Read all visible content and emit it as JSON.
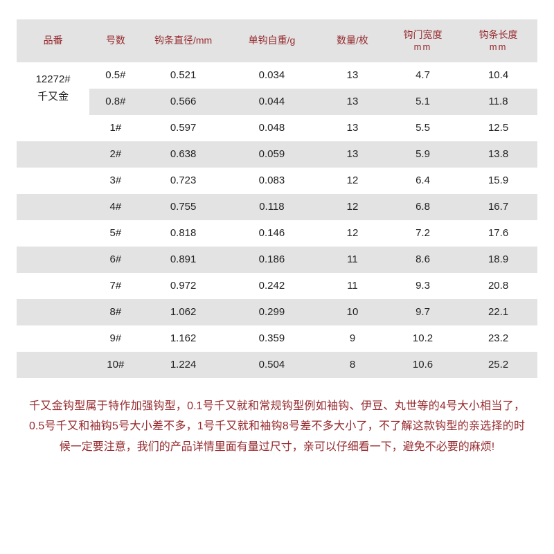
{
  "table": {
    "columns": [
      {
        "key": "pin",
        "label": "品番",
        "unit": ""
      },
      {
        "key": "size",
        "label": "号数",
        "unit": ""
      },
      {
        "key": "dia",
        "label": "钩条直径/mm",
        "unit": ""
      },
      {
        "key": "wt",
        "label": "单钩自重/g",
        "unit": ""
      },
      {
        "key": "qty",
        "label": "数量/枚",
        "unit": ""
      },
      {
        "key": "gate",
        "label": "钩门宽度",
        "unit": "mm"
      },
      {
        "key": "len",
        "label": "钩条长度",
        "unit": "mm"
      }
    ],
    "product_code": "12272#",
    "product_name": "千又金",
    "rows": [
      {
        "size": "0.5#",
        "dia": "0.521",
        "wt": "0.034",
        "qty": "13",
        "gate": "4.7",
        "len": "10.4"
      },
      {
        "size": "0.8#",
        "dia": "0.566",
        "wt": "0.044",
        "qty": "13",
        "gate": "5.1",
        "len": "11.8"
      },
      {
        "size": "1#",
        "dia": "0.597",
        "wt": "0.048",
        "qty": "13",
        "gate": "5.5",
        "len": "12.5"
      },
      {
        "size": "2#",
        "dia": "0.638",
        "wt": "0.059",
        "qty": "13",
        "gate": "5.9",
        "len": "13.8"
      },
      {
        "size": "3#",
        "dia": "0.723",
        "wt": "0.083",
        "qty": "12",
        "gate": "6.4",
        "len": "15.9"
      },
      {
        "size": "4#",
        "dia": "0.755",
        "wt": "0.118",
        "qty": "12",
        "gate": "6.8",
        "len": "16.7"
      },
      {
        "size": "5#",
        "dia": "0.818",
        "wt": "0.146",
        "qty": "12",
        "gate": "7.2",
        "len": "17.6"
      },
      {
        "size": "6#",
        "dia": "0.891",
        "wt": "0.186",
        "qty": "11",
        "gate": "8.6",
        "len": "18.9"
      },
      {
        "size": "7#",
        "dia": "0.972",
        "wt": "0.242",
        "qty": "11",
        "gate": "9.3",
        "len": "20.8"
      },
      {
        "size": "8#",
        "dia": "1.062",
        "wt": "0.299",
        "qty": "10",
        "gate": "9.7",
        "len": "22.1"
      },
      {
        "size": "9#",
        "dia": "1.162",
        "wt": "0.359",
        "qty": "9",
        "gate": "10.2",
        "len": "23.2"
      },
      {
        "size": "10#",
        "dia": "1.224",
        "wt": "0.504",
        "qty": "8",
        "gate": "10.6",
        "len": "25.2"
      }
    ]
  },
  "description": "千又金钩型属于特作加强钩型，0.1号千又就和常规钩型例如袖钩、伊豆、丸世等的4号大小相当了，0.5号千又和袖钩5号大小差不多，1号千又就和袖钩8号差不多大小了，不了解这款钩型的亲选择的时候一定要注意，我们的产品详情里面有量过尺寸，亲可以仔细看一下，避免不必要的麻烦!",
  "colors": {
    "accent": "#962a2e",
    "row_alt": "#e3e3e3",
    "row_base": "#ffffff",
    "text": "#222222"
  }
}
